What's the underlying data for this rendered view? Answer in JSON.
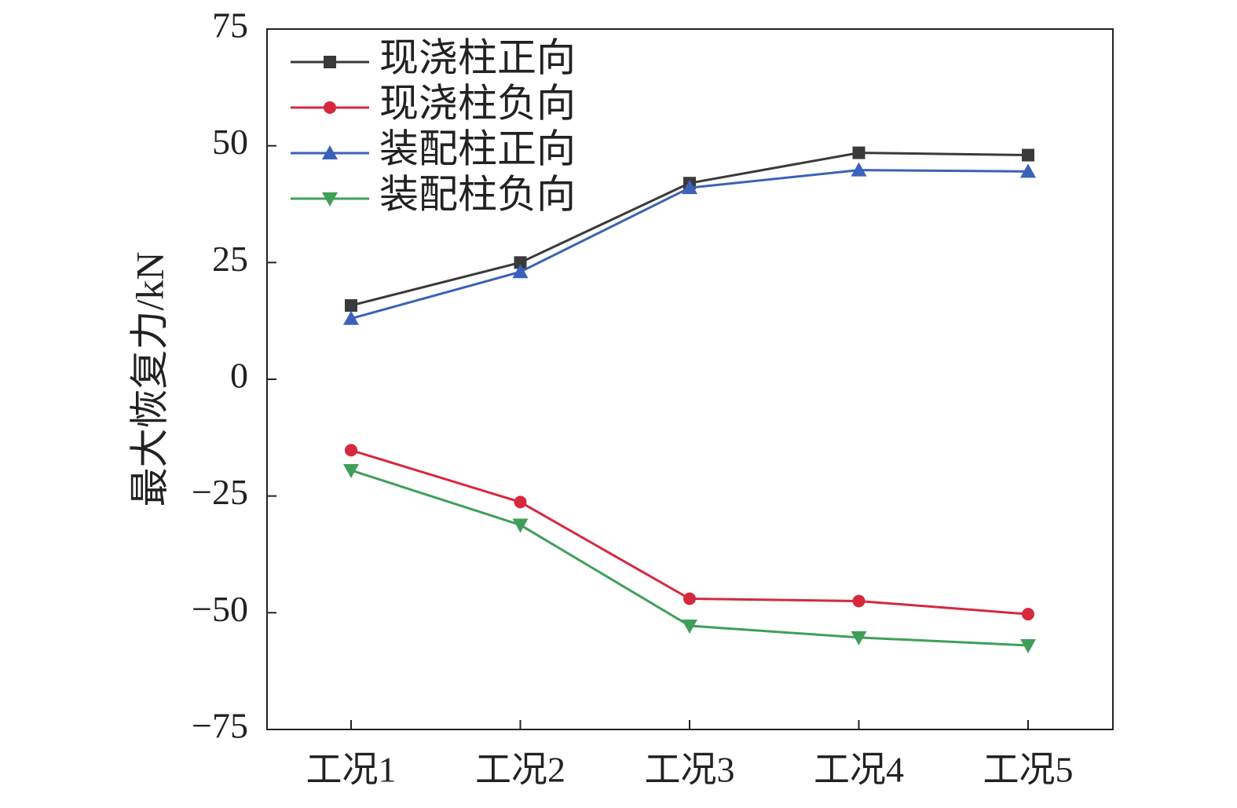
{
  "chart_data": {
    "type": "line",
    "title": "",
    "xlabel": "",
    "ylabel": "最大恢复力/kN",
    "categories": [
      "工况1",
      "工况2",
      "工况3",
      "工况4",
      "工况5"
    ],
    "ylim": [
      -75,
      75
    ],
    "yticks": [
      75,
      50,
      25,
      0,
      -25,
      -50,
      -75
    ],
    "ytick_labels": [
      "75",
      "50",
      "25",
      "0",
      "−25",
      "−50",
      "−75"
    ],
    "grid": false,
    "legend_position": "top-left",
    "series": [
      {
        "name": "现浇柱正向",
        "marker": "square",
        "color": "#3a3a3a",
        "values": [
          15.8,
          25.0,
          42.0,
          48.5,
          48.0
        ]
      },
      {
        "name": "现浇柱负向",
        "marker": "circle",
        "color": "#d6283e",
        "values": [
          -15.2,
          -26.3,
          -47.0,
          -47.5,
          -50.3
        ]
      },
      {
        "name": "装配柱正向",
        "marker": "triangle-up",
        "color": "#3a62b8",
        "values": [
          13.0,
          23.0,
          41.0,
          44.8,
          44.5
        ]
      },
      {
        "name": "装配柱负向",
        "marker": "triangle-down",
        "color": "#3f9f5a",
        "values": [
          -19.5,
          -31.2,
          -52.8,
          -55.3,
          -57.0
        ]
      }
    ]
  }
}
